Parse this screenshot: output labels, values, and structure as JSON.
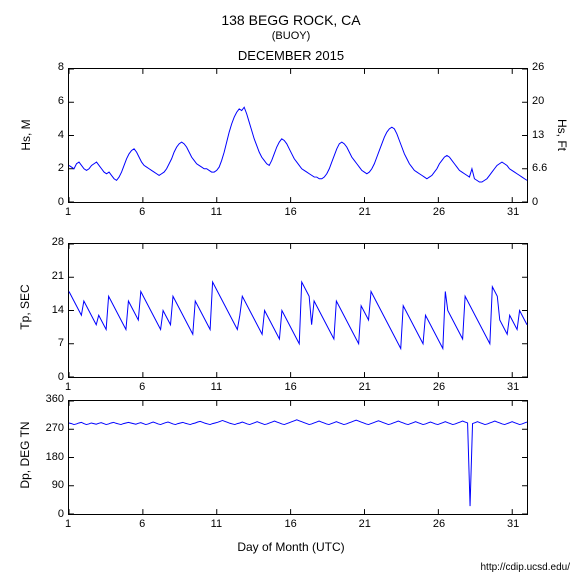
{
  "title": "138 BEGG ROCK, CA",
  "subtitle": "(BUOY)",
  "month_title": "DECEMBER 2015",
  "x_axis_label": "Day of Month (UTC)",
  "footer": "http://cdip.ucsd.edu/",
  "background_color": "#ffffff",
  "line_color": "#0000ff",
  "axis_color": "#000000",
  "text_color": "#000000",
  "title_fontsize": 14,
  "subtitle_fontsize": 11,
  "label_fontsize": 12,
  "tick_fontsize": 11,
  "x_axis": {
    "min": 1,
    "max": 32,
    "ticks": [
      1,
      6,
      11,
      16,
      21,
      26,
      31
    ]
  },
  "panels": [
    {
      "name": "hs",
      "y_label": "Hs, M",
      "y2_label": "Hs, Ft",
      "ymin": 0,
      "ymax": 8,
      "yticks": [
        0,
        2,
        4,
        6,
        8
      ],
      "y2ticks": [
        0,
        6.6,
        13,
        20,
        26
      ],
      "line_width": 1.0,
      "data": [
        2.2,
        2.1,
        2.0,
        2.3,
        2.4,
        2.2,
        2.0,
        1.9,
        2.0,
        2.2,
        2.3,
        2.4,
        2.2,
        2.0,
        1.8,
        1.7,
        1.8,
        1.6,
        1.4,
        1.3,
        1.5,
        1.8,
        2.2,
        2.6,
        2.9,
        3.1,
        3.2,
        3.0,
        2.7,
        2.4,
        2.2,
        2.1,
        2.0,
        1.9,
        1.8,
        1.7,
        1.6,
        1.7,
        1.8,
        2.0,
        2.3,
        2.6,
        3.0,
        3.3,
        3.5,
        3.6,
        3.5,
        3.3,
        3.0,
        2.7,
        2.5,
        2.3,
        2.2,
        2.1,
        2.0,
        2.0,
        1.9,
        1.8,
        1.8,
        1.9,
        2.1,
        2.5,
        3.0,
        3.6,
        4.2,
        4.7,
        5.1,
        5.4,
        5.6,
        5.5,
        5.7,
        5.3,
        4.8,
        4.3,
        3.8,
        3.4,
        3.0,
        2.7,
        2.5,
        2.3,
        2.2,
        2.5,
        2.9,
        3.3,
        3.6,
        3.8,
        3.7,
        3.5,
        3.2,
        2.9,
        2.6,
        2.4,
        2.2,
        2.0,
        1.9,
        1.8,
        1.7,
        1.6,
        1.5,
        1.5,
        1.4,
        1.4,
        1.5,
        1.7,
        2.0,
        2.4,
        2.8,
        3.2,
        3.5,
        3.6,
        3.5,
        3.3,
        3.0,
        2.7,
        2.5,
        2.3,
        2.1,
        1.9,
        1.8,
        1.7,
        1.8,
        2.0,
        2.3,
        2.7,
        3.1,
        3.5,
        3.9,
        4.2,
        4.4,
        4.5,
        4.4,
        4.1,
        3.7,
        3.3,
        2.9,
        2.6,
        2.3,
        2.1,
        1.9,
        1.8,
        1.7,
        1.6,
        1.5,
        1.4,
        1.5,
        1.6,
        1.8,
        2.0,
        2.3,
        2.5,
        2.7,
        2.8,
        2.7,
        2.5,
        2.3,
        2.1,
        1.9,
        1.8,
        1.7,
        1.6,
        1.5,
        2.0,
        1.4,
        1.3,
        1.2,
        1.2,
        1.3,
        1.4,
        1.6,
        1.8,
        2.0,
        2.2,
        2.3,
        2.4,
        2.3,
        2.2,
        2.0,
        1.9,
        1.8,
        1.7,
        1.6,
        1.5,
        1.4,
        1.3
      ]
    },
    {
      "name": "tp",
      "y_label": "Tp, SEC",
      "ymin": 0,
      "ymax": 28,
      "yticks": [
        0,
        7,
        14,
        21,
        28
      ],
      "line_width": 1.0,
      "data": [
        18,
        17,
        16,
        15,
        14,
        13,
        16,
        15,
        14,
        13,
        12,
        11,
        13,
        12,
        11,
        10,
        17,
        16,
        15,
        14,
        13,
        12,
        11,
        10,
        16,
        15,
        14,
        13,
        12,
        18,
        17,
        16,
        15,
        14,
        13,
        12,
        11,
        10,
        14,
        13,
        12,
        11,
        17,
        16,
        15,
        14,
        13,
        12,
        11,
        10,
        9,
        16,
        15,
        14,
        13,
        12,
        11,
        10,
        20,
        19,
        18,
        17,
        16,
        15,
        14,
        13,
        12,
        11,
        10,
        13,
        17,
        16,
        15,
        14,
        13,
        12,
        11,
        10,
        9,
        14,
        13,
        12,
        11,
        10,
        9,
        8,
        14,
        13,
        12,
        11,
        10,
        9,
        8,
        7,
        20,
        19,
        18,
        17,
        11,
        16,
        15,
        14,
        13,
        12,
        11,
        10,
        9,
        8,
        16,
        15,
        14,
        13,
        12,
        11,
        10,
        9,
        8,
        7,
        15,
        14,
        13,
        12,
        18,
        17,
        16,
        15,
        14,
        13,
        12,
        11,
        10,
        9,
        8,
        7,
        6,
        15,
        14,
        13,
        12,
        11,
        10,
        9,
        8,
        7,
        13,
        12,
        11,
        10,
        9,
        8,
        7,
        6,
        18,
        14,
        13,
        12,
        11,
        10,
        9,
        8,
        17,
        16,
        15,
        14,
        13,
        12,
        11,
        10,
        9,
        8,
        7,
        19,
        18,
        17,
        12,
        11,
        10,
        9,
        13,
        12,
        11,
        10,
        14,
        13,
        12,
        11
      ]
    },
    {
      "name": "dp",
      "y_label": "Dp, DEG TN",
      "ymin": 0,
      "ymax": 360,
      "yticks": [
        0,
        90,
        180,
        270,
        360
      ],
      "line_width": 1.0,
      "data": [
        290,
        288,
        285,
        287,
        290,
        292,
        288,
        285,
        287,
        290,
        288,
        286,
        289,
        291,
        288,
        285,
        287,
        290,
        292,
        289,
        287,
        285,
        288,
        290,
        292,
        290,
        288,
        286,
        289,
        291,
        288,
        285,
        287,
        290,
        293,
        290,
        287,
        285,
        288,
        291,
        293,
        290,
        287,
        285,
        288,
        290,
        292,
        289,
        287,
        285,
        288,
        290,
        293,
        295,
        292,
        289,
        287,
        285,
        288,
        290,
        292,
        295,
        298,
        295,
        292,
        289,
        287,
        285,
        288,
        290,
        293,
        290,
        287,
        285,
        288,
        291,
        294,
        291,
        288,
        285,
        287,
        290,
        293,
        296,
        293,
        290,
        287,
        285,
        288,
        291,
        294,
        297,
        300,
        297,
        294,
        291,
        288,
        285,
        287,
        290,
        293,
        296,
        293,
        290,
        287,
        285,
        288,
        291,
        294,
        291,
        288,
        285,
        287,
        290,
        293,
        296,
        299,
        296,
        293,
        290,
        287,
        285,
        288,
        291,
        294,
        297,
        294,
        291,
        288,
        285,
        287,
        290,
        293,
        296,
        293,
        290,
        287,
        285,
        288,
        291,
        294,
        291,
        288,
        285,
        287,
        290,
        293,
        290,
        287,
        285,
        288,
        291,
        294,
        291,
        288,
        285,
        287,
        290,
        293,
        296,
        293,
        290,
        25,
        288,
        291,
        294,
        291,
        288,
        285,
        287,
        290,
        293,
        296,
        293,
        290,
        287,
        285,
        288,
        291,
        294,
        291,
        288,
        285,
        287,
        290,
        293
      ]
    }
  ]
}
